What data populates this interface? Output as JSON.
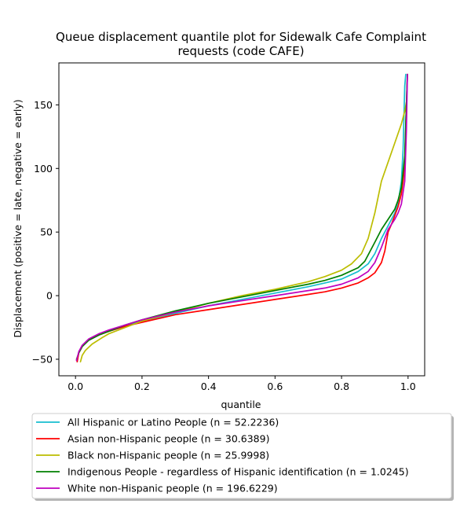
{
  "chart_data": {
    "type": "line",
    "title_line1": "Queue displacement quantile plot for Sidewalk Cafe Complaint",
    "title_line2": "requests (code CAFE)",
    "xlabel": "quantile",
    "ylabel": "Displacement (positive = late, negative = early)",
    "xlim": [
      -0.05,
      1.05
    ],
    "ylim": [
      -63,
      183
    ],
    "xticks": [
      0.0,
      0.2,
      0.4,
      0.6,
      0.8,
      1.0
    ],
    "xtick_labels": [
      "0.0",
      "0.2",
      "0.4",
      "0.6",
      "0.8",
      "1.0"
    ],
    "yticks": [
      -50,
      0,
      50,
      100,
      150
    ],
    "ytick_labels": [
      "−50",
      "0",
      "50",
      "100",
      "150"
    ],
    "grid": false,
    "legend_position": "below",
    "series": [
      {
        "name": "All Hispanic or Latino People (n = 52.2236)",
        "color": "#17becf",
        "x": [
          0.005,
          0.01,
          0.02,
          0.04,
          0.07,
          0.1,
          0.15,
          0.2,
          0.3,
          0.4,
          0.5,
          0.6,
          0.7,
          0.75,
          0.8,
          0.85,
          0.88,
          0.9,
          0.92,
          0.94,
          0.96,
          0.97,
          0.98,
          0.985,
          0.99,
          0.993
        ],
        "y": [
          -52,
          -44,
          -40,
          -35,
          -31,
          -28,
          -24,
          -20,
          -14,
          -8,
          -3,
          2,
          7,
          10,
          13,
          19,
          25,
          33,
          45,
          55,
          65,
          72,
          90,
          115,
          165,
          174
        ]
      },
      {
        "name": "Asian non-Hispanic people (n = 30.6389)",
        "color": "#ff0000",
        "x": [
          0.005,
          0.01,
          0.02,
          0.04,
          0.07,
          0.1,
          0.15,
          0.2,
          0.3,
          0.4,
          0.5,
          0.6,
          0.7,
          0.75,
          0.8,
          0.85,
          0.88,
          0.9,
          0.92,
          0.93,
          0.94,
          0.95,
          0.96,
          0.97,
          0.98,
          0.985,
          0.99,
          0.995,
          0.998
        ],
        "y": [
          -52,
          -45,
          -40,
          -35,
          -31,
          -28,
          -24,
          -21,
          -15,
          -11,
          -7,
          -3,
          1,
          3,
          6,
          10,
          14,
          18,
          26,
          35,
          50,
          56,
          63,
          70,
          80,
          90,
          105,
          150,
          174
        ]
      },
      {
        "name": "Black non-Hispanic people (n = 25.9998)",
        "color": "#bcbd00",
        "x": [
          0.015,
          0.02,
          0.03,
          0.05,
          0.08,
          0.1,
          0.15,
          0.2,
          0.3,
          0.4,
          0.5,
          0.6,
          0.7,
          0.75,
          0.8,
          0.83,
          0.86,
          0.88,
          0.9,
          0.92,
          0.94,
          0.96,
          0.98,
          0.99,
          0.995
        ],
        "y": [
          -52,
          -47,
          -43,
          -38,
          -33,
          -30,
          -25,
          -20,
          -13,
          -6,
          0,
          5,
          11,
          15,
          20,
          25,
          33,
          45,
          65,
          90,
          105,
          120,
          135,
          145,
          152
        ]
      },
      {
        "name": "Indigenous People - regardless of Hispanic identification (n = 1.0245)",
        "color": "#008000",
        "x": [
          0.003,
          0.01,
          0.02,
          0.04,
          0.07,
          0.1,
          0.15,
          0.2,
          0.3,
          0.4,
          0.5,
          0.6,
          0.7,
          0.75,
          0.8,
          0.85,
          0.87,
          0.9,
          0.92,
          0.94,
          0.96,
          0.97,
          0.98,
          0.99,
          0.995,
          0.998
        ],
        "y": [
          -50,
          -45,
          -40,
          -35,
          -31,
          -28,
          -23,
          -19,
          -12,
          -6,
          -1,
          4,
          9,
          12,
          16,
          22,
          27,
          42,
          52,
          60,
          68,
          75,
          85,
          110,
          150,
          174
        ]
      },
      {
        "name": "White non-Hispanic people (n = 196.6229)",
        "color": "#bf00bf",
        "x": [
          0.003,
          0.01,
          0.02,
          0.04,
          0.07,
          0.1,
          0.15,
          0.2,
          0.3,
          0.4,
          0.5,
          0.6,
          0.7,
          0.75,
          0.8,
          0.85,
          0.88,
          0.9,
          0.92,
          0.94,
          0.96,
          0.97,
          0.98,
          0.99,
          0.995,
          0.998
        ],
        "y": [
          -51,
          -44,
          -39,
          -34,
          -30,
          -27,
          -23,
          -19,
          -13,
          -8,
          -4,
          0,
          4,
          6,
          9,
          14,
          19,
          26,
          38,
          52,
          60,
          65,
          72,
          90,
          130,
          174
        ]
      }
    ]
  }
}
